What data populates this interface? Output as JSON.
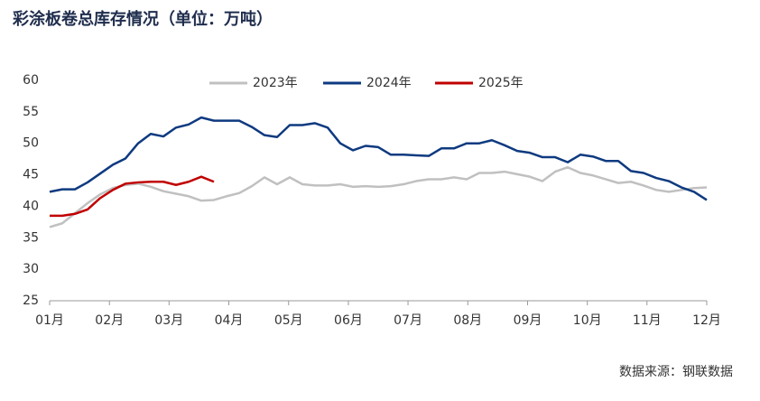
{
  "chart_data": {
    "type": "line",
    "title": "彩涂板卷总库存情况（单位：万吨）",
    "source": "数据来源：钢联数据",
    "x": [
      1,
      2,
      3,
      4,
      5,
      6,
      7,
      8,
      9,
      10,
      11,
      12,
      13,
      14,
      15,
      16,
      17,
      18,
      19,
      20,
      21,
      22,
      23,
      24,
      25,
      26,
      27,
      28,
      29,
      30,
      31,
      32,
      33,
      34,
      35,
      36,
      37,
      38,
      39,
      40,
      41,
      42,
      43,
      44,
      45,
      46,
      47,
      48,
      49,
      50,
      51,
      52,
      53
    ],
    "xlim": [
      1,
      53
    ],
    "xticks": [
      {
        "value": 1,
        "label": "01月"
      },
      {
        "value": 5.73,
        "label": "02月"
      },
      {
        "value": 10.45,
        "label": "03月"
      },
      {
        "value": 15.18,
        "label": "04月"
      },
      {
        "value": 19.91,
        "label": "05月"
      },
      {
        "value": 24.64,
        "label": "06月"
      },
      {
        "value": 29.36,
        "label": "07月"
      },
      {
        "value": 34.09,
        "label": "08月"
      },
      {
        "value": 38.82,
        "label": "09月"
      },
      {
        "value": 43.55,
        "label": "10月"
      },
      {
        "value": 48.27,
        "label": "11月"
      },
      {
        "value": 53,
        "label": "12月"
      }
    ],
    "ylim": [
      25,
      60
    ],
    "yticks": [
      25,
      30,
      35,
      40,
      45,
      50,
      55,
      60
    ],
    "legend": "top",
    "series": [
      {
        "name": "2023年",
        "color": "#c0c0c0",
        "values": [
          36.7,
          37.3,
          38.9,
          40.5,
          41.9,
          42.9,
          43.4,
          43.6,
          43.1,
          42.4,
          42.0,
          41.6,
          40.9,
          41.0,
          41.6,
          42.1,
          43.2,
          44.6,
          43.5,
          44.6,
          43.5,
          43.3,
          43.3,
          43.5,
          43.1,
          43.2,
          43.1,
          43.2,
          43.5,
          44.0,
          44.3,
          44.3,
          44.6,
          44.3,
          45.3,
          45.3,
          45.5,
          45.1,
          44.7,
          44.0,
          45.5,
          46.2,
          45.3,
          44.9,
          44.3,
          43.7,
          43.9,
          43.3,
          42.6,
          42.3,
          42.6,
          42.9,
          43.0
        ]
      },
      {
        "name": "2024年",
        "color": "#0e3a80",
        "values": [
          42.3,
          42.7,
          42.7,
          43.8,
          45.2,
          46.6,
          47.6,
          50.0,
          51.5,
          51.1,
          52.5,
          53.0,
          54.1,
          53.6,
          53.6,
          53.6,
          52.6,
          51.3,
          51.0,
          52.9,
          52.9,
          53.2,
          52.5,
          50.0,
          48.9,
          49.6,
          49.4,
          48.2,
          48.2,
          48.1,
          48.0,
          49.2,
          49.2,
          50.0,
          50.0,
          50.5,
          49.7,
          48.8,
          48.5,
          47.8,
          47.8,
          47.0,
          48.2,
          47.9,
          47.2,
          47.2,
          45.6,
          45.3,
          44.5,
          44.0,
          43.0,
          42.3,
          41.0
        ]
      },
      {
        "name": "2025年",
        "color": "#c00000",
        "values": [
          38.5,
          38.5,
          38.8,
          39.5,
          41.3,
          42.6,
          43.6,
          43.8,
          43.9,
          43.9,
          43.4,
          43.9,
          44.7,
          43.9,
          null,
          null,
          null,
          null,
          null,
          null,
          null,
          null,
          null,
          null,
          null,
          null,
          null,
          null,
          null,
          null,
          null,
          null,
          null,
          null,
          null,
          null,
          null,
          null,
          null,
          null,
          null,
          null,
          null,
          null,
          null,
          null,
          null,
          null,
          null,
          null,
          null,
          null,
          null
        ]
      }
    ]
  }
}
